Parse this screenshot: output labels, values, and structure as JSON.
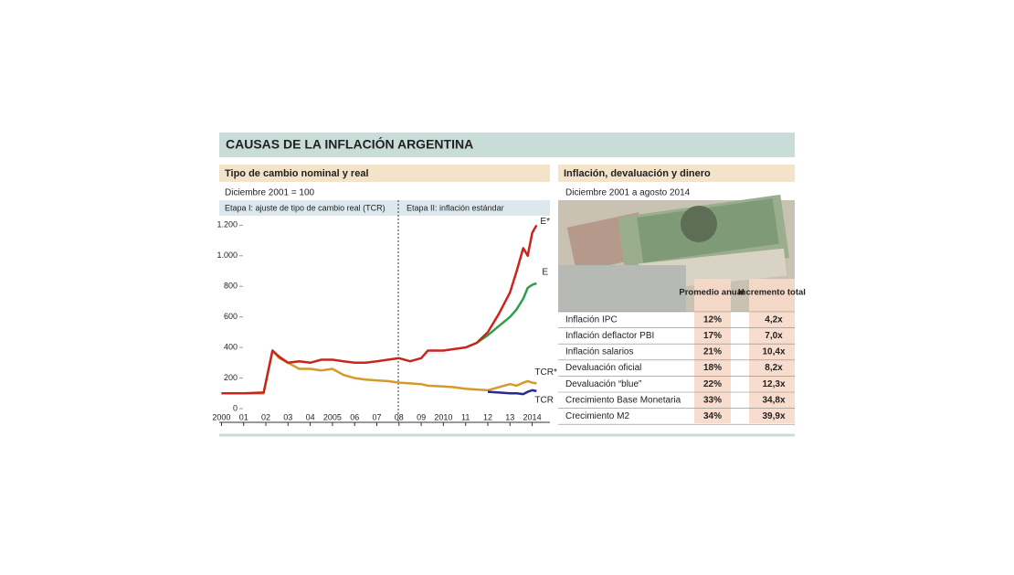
{
  "title": "CAUSAS DE LA INFLACIÓN ARGENTINA",
  "chart_data": {
    "type": "line",
    "title": "Tipo de cambio nominal y real",
    "subtitle": "Diciembre 2001 = 100",
    "annotations": [
      "Etapa I: ajuste de tipo de cambio real (TCR)",
      "Etapa II: inflación estándar"
    ],
    "x": [
      2000,
      2001,
      2001.9,
      2002.3,
      2002.6,
      2003,
      2003.5,
      2004,
      2004.5,
      2005,
      2005.5,
      2006,
      2006.5,
      2007,
      2007.5,
      2008,
      2008.5,
      2009,
      2009.3,
      2010,
      2010.5,
      2011,
      2011.5,
      2012,
      2012.5,
      2013,
      2013.3,
      2013.6,
      2013.8,
      2014,
      2014.2
    ],
    "series": [
      {
        "name": "E*",
        "color": "#c8251f",
        "values": [
          100,
          100,
          105,
          380,
          340,
          300,
          310,
          300,
          320,
          320,
          310,
          300,
          300,
          310,
          320,
          330,
          310,
          330,
          380,
          380,
          390,
          400,
          430,
          500,
          620,
          760,
          900,
          1050,
          1000,
          1150,
          1200
        ]
      },
      {
        "name": "E",
        "color": "#2e9e4a",
        "values": [
          null,
          null,
          null,
          null,
          null,
          null,
          null,
          null,
          null,
          null,
          null,
          null,
          null,
          null,
          null,
          null,
          null,
          null,
          null,
          null,
          null,
          400,
          430,
          480,
          540,
          600,
          650,
          720,
          790,
          810,
          820
        ]
      },
      {
        "name": "TCR*",
        "color": "#d49a2a",
        "values": [
          100,
          100,
          100,
          380,
          330,
          300,
          260,
          260,
          250,
          260,
          220,
          200,
          190,
          185,
          180,
          170,
          165,
          160,
          150,
          145,
          140,
          130,
          125,
          120,
          140,
          160,
          150,
          170,
          180,
          170,
          165
        ]
      },
      {
        "name": "TCR",
        "color": "#2a2a8c",
        "values": [
          null,
          null,
          null,
          null,
          null,
          null,
          null,
          null,
          null,
          null,
          null,
          null,
          null,
          null,
          null,
          null,
          null,
          null,
          null,
          null,
          null,
          null,
          null,
          110,
          105,
          100,
          100,
          95,
          110,
          120,
          115
        ]
      }
    ],
    "xlim": [
      1999.9,
      2014.8
    ],
    "xticks": [
      2000,
      {
        "value": 2001,
        "label": "01"
      },
      {
        "value": 2002,
        "label": "02"
      },
      {
        "value": 2003,
        "label": "03"
      },
      {
        "value": 2004,
        "label": "04"
      },
      2005,
      {
        "value": 2006,
        "label": "06"
      },
      {
        "value": 2007,
        "label": "07"
      },
      {
        "value": 2008,
        "label": "08"
      },
      {
        "value": 2009,
        "label": "09"
      },
      2010,
      {
        "value": 2011,
        "label": "11"
      },
      {
        "value": 2012,
        "label": "12"
      },
      {
        "value": 2013,
        "label": "13"
      },
      2014
    ],
    "ylim": [
      0,
      1250
    ],
    "yticks": [
      0,
      200,
      400,
      600,
      800,
      {
        "value": 1000,
        "label": "1.000"
      },
      {
        "value": 1200,
        "label": "1.200"
      }
    ]
  },
  "table": {
    "title": "Inflación, devaluación y dinero",
    "subtitle": "Diciembre 2001 a agosto 2014",
    "columns": [
      "Promedio anual",
      "Incremento total"
    ],
    "rows": [
      [
        "Inflación IPC",
        "12%",
        "4,2x"
      ],
      [
        "Inflación deflactor PBI",
        "17%",
        "7,0x"
      ],
      [
        "Inflación salarios",
        "21%",
        "10,4x"
      ],
      [
        "Devaluación oficial",
        "18%",
        "8,2x"
      ],
      [
        "Devaluación “blue”",
        "22%",
        "12,3x"
      ],
      [
        "Crecimiento Base Monetaria",
        "33%",
        "34,8x"
      ],
      [
        "Crecimiento M2",
        "34%",
        "39,9x"
      ]
    ]
  }
}
